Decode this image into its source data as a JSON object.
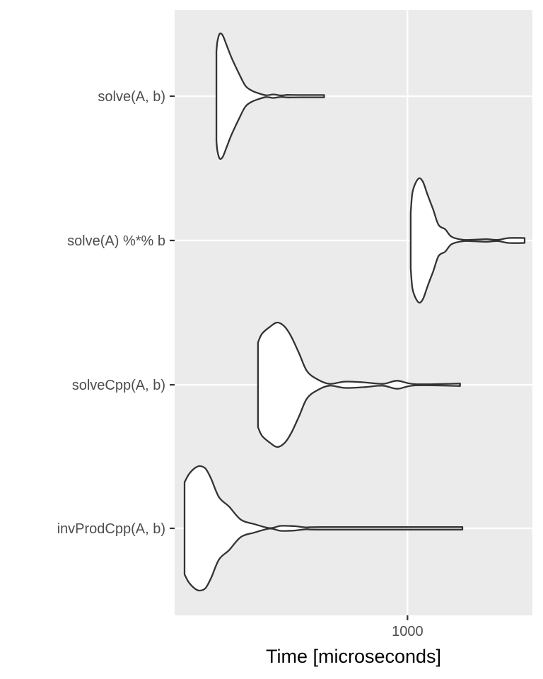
{
  "chart_data": {
    "type": "violin",
    "orientation": "horizontal",
    "xlabel": "Time [microseconds]",
    "ylabel": "",
    "x_scale": "log10",
    "x_ticks": [
      1000
    ],
    "x_tick_labels": [
      "1000"
    ],
    "xlim": [
      240,
      2150
    ],
    "grid": true,
    "legend": "none",
    "categories": [
      "solve(A, b)",
      "solve(A) %*% b",
      "solveCpp(A, b)",
      "invProdCpp(A, b)"
    ],
    "series": [
      {
        "name": "solve(A, b)",
        "min": 310,
        "mode": 320,
        "max": 600,
        "density": [
          [
            310,
            0.72
          ],
          [
            312,
            0.88
          ],
          [
            316,
            1.0
          ],
          [
            322,
            0.98
          ],
          [
            330,
            0.82
          ],
          [
            340,
            0.62
          ],
          [
            355,
            0.38
          ],
          [
            370,
            0.17
          ],
          [
            385,
            0.09
          ],
          [
            400,
            0.05
          ],
          [
            420,
            0.015
          ],
          [
            440,
            0.028
          ],
          [
            460,
            0.012
          ],
          [
            480,
            0.02
          ],
          [
            520,
            0.018
          ],
          [
            600,
            0.018
          ]
        ]
      },
      {
        "name": "solve(A) %*% b",
        "min": 1020,
        "mode": 1080,
        "max": 2050,
        "density": [
          [
            1020,
            0.45
          ],
          [
            1030,
            0.76
          ],
          [
            1050,
            0.92
          ],
          [
            1075,
            1.0
          ],
          [
            1100,
            0.94
          ],
          [
            1130,
            0.74
          ],
          [
            1170,
            0.5
          ],
          [
            1210,
            0.25
          ],
          [
            1260,
            0.18
          ],
          [
            1310,
            0.06
          ],
          [
            1400,
            0.012
          ],
          [
            1500,
            0.012
          ],
          [
            1620,
            0.02
          ],
          [
            1740,
            0.01
          ],
          [
            1860,
            0.04
          ],
          [
            2050,
            0.04
          ]
        ]
      },
      {
        "name": "solveCpp(A, b)",
        "min": 400,
        "mode": 450,
        "max": 1380,
        "density": [
          [
            400,
            0.68
          ],
          [
            410,
            0.82
          ],
          [
            430,
            0.93
          ],
          [
            450,
            1.0
          ],
          [
            470,
            0.94
          ],
          [
            490,
            0.78
          ],
          [
            515,
            0.5
          ],
          [
            540,
            0.22
          ],
          [
            575,
            0.09
          ],
          [
            620,
            0.015
          ],
          [
            680,
            0.05
          ],
          [
            760,
            0.04
          ],
          [
            860,
            0.015
          ],
          [
            940,
            0.065
          ],
          [
            1050,
            0.01
          ],
          [
            1380,
            0.02
          ]
        ]
      },
      {
        "name": "invProdCpp(A, b)",
        "min": 255,
        "mode": 275,
        "max": 1400,
        "density": [
          [
            255,
            0.74
          ],
          [
            262,
            0.87
          ],
          [
            272,
            0.97
          ],
          [
            280,
            1.0
          ],
          [
            290,
            0.96
          ],
          [
            300,
            0.8
          ],
          [
            315,
            0.5
          ],
          [
            335,
            0.35
          ],
          [
            360,
            0.14
          ],
          [
            390,
            0.07
          ],
          [
            430,
            0.005
          ],
          [
            460,
            0.04
          ],
          [
            500,
            0.035
          ],
          [
            540,
            0.015
          ],
          [
            600,
            0.02
          ],
          [
            1400,
            0.02
          ]
        ]
      }
    ]
  }
}
